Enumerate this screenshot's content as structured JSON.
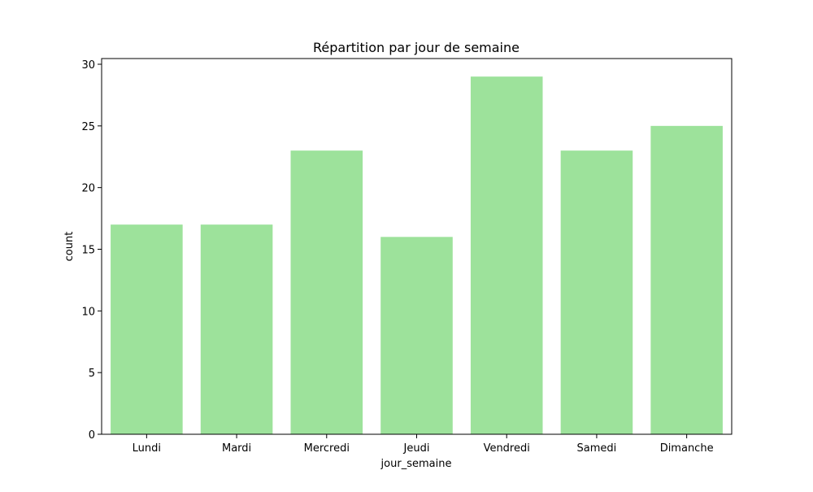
{
  "chart_data": {
    "type": "bar",
    "title": "Répartition par jour de semaine",
    "xlabel": "jour_semaine",
    "ylabel": "count",
    "categories": [
      "Lundi",
      "Mardi",
      "Mercredi",
      "Jeudi",
      "Vendredi",
      "Samedi",
      "Dimanche"
    ],
    "values": [
      17,
      17,
      23,
      16,
      29,
      23,
      25
    ],
    "ylim": [
      0,
      30
    ],
    "yticks": [
      0,
      5,
      10,
      15,
      20,
      25,
      30
    ],
    "grid": false,
    "bar_color": "#9de29b"
  }
}
